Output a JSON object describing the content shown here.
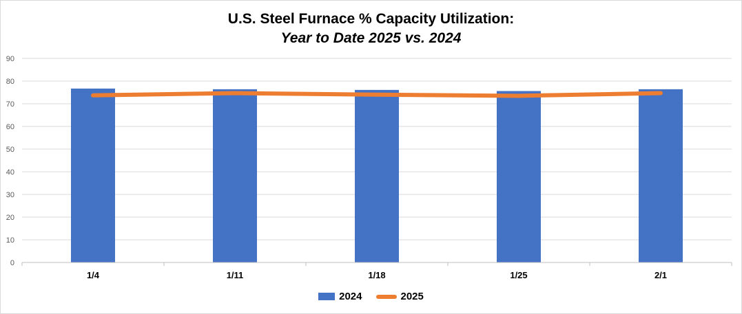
{
  "chart_data": {
    "type": "bar",
    "title": "U.S. Steel Furnace % Capacity Utilization:",
    "subtitle": "Year to Date 2025 vs. 2024",
    "categories": [
      "1/4",
      "1/11",
      "1/18",
      "1/25",
      "2/1"
    ],
    "ylim": [
      0,
      90
    ],
    "yticks": [
      0,
      10,
      20,
      30,
      40,
      50,
      60,
      70,
      80,
      90
    ],
    "grid": true,
    "legend_position": "bottom",
    "series": [
      {
        "name": "2024",
        "type": "bar",
        "color": "#4472c4",
        "values": [
          76.7,
          76.4,
          76.1,
          75.6,
          76.4
        ]
      },
      {
        "name": "2025",
        "type": "line",
        "color": "#ed7d31",
        "values": [
          73.7,
          74.7,
          74.0,
          73.5,
          74.7
        ]
      }
    ]
  }
}
